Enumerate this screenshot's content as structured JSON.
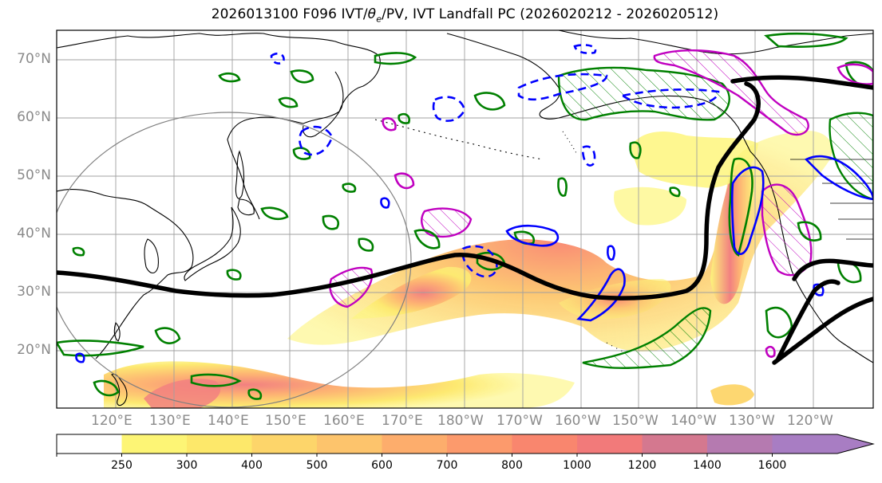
{
  "title": "2026013100 F096 IVT/θe/PV, IVT Landfall PC (2026020212 - 2026020512)",
  "title_parts": {
    "prefix": "2026013100 F096 IVT/",
    "theta": "θ",
    "theta_sub": "e",
    "suffix": "/PV, IVT Landfall PC (2026020212 - 2026020512)"
  },
  "lat_labels": [
    "70°N",
    "60°N",
    "50°N",
    "40°N",
    "30°N",
    "20°N"
  ],
  "lon_labels": [
    "120°E",
    "130°E",
    "140°E",
    "150°E",
    "160°E",
    "170°E",
    "180°W",
    "170°W",
    "160°W",
    "150°W",
    "140°W",
    "130°W",
    "120°W"
  ],
  "colorbar": {
    "levels": [
      250,
      300,
      400,
      500,
      600,
      700,
      800,
      1000,
      1200,
      1400,
      1600
    ],
    "tick_labels": [
      "250",
      "300",
      "400",
      "500",
      "600",
      "700",
      "800",
      "1000",
      "1200",
      "1400",
      "1600"
    ],
    "colors": [
      "#ffffff",
      "#fdf575",
      "#fde86a",
      "#fdd56a",
      "#fdc46c",
      "#fdad6c",
      "#fc9a6c",
      "#f9866e",
      "#f27a7a",
      "#d4788f",
      "#b57ab0",
      "#a87dc3"
    ]
  },
  "colors": {
    "ivt_fill_light": "#fdf575",
    "ivt_fill_dark": "#f27a7a",
    "theta_e_contour": "#008000",
    "pv_contour_blue": "#0000ff",
    "pv_contour_magenta": "#c000c0",
    "landfall_pc_line": "#000000",
    "coastline": "#000000",
    "gridline": "#a0a0a0",
    "radius_circle": "#808080"
  }
}
